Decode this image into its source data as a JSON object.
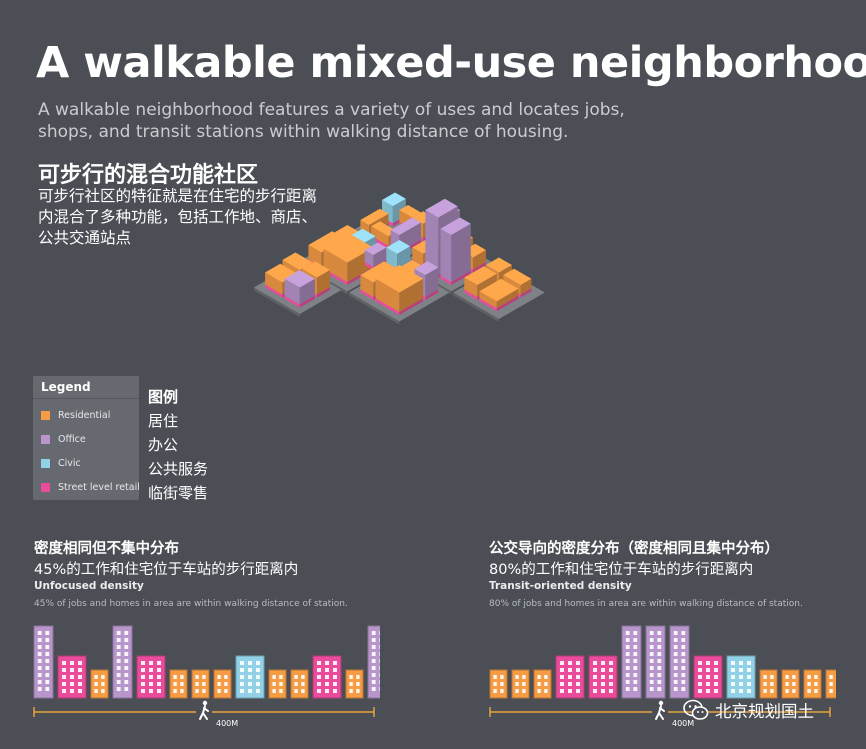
{
  "header": {
    "title": "A walkable mixed-use neighborhood",
    "subtitle": "A walkable neighborhood features a variety of uses and locates jobs, shops, and transit stations within walking distance of housing.",
    "cn_title": "可步行的混合功能社区",
    "cn_description": "可步行社区的特征就是在住宅的步行距离内混合了多种功能，包括工作地、商店、公共交通站点"
  },
  "colors": {
    "residential": "#f59c45",
    "office": "#b896cc",
    "civic": "#92d2e8",
    "retail": "#ea4c9b",
    "background": "#4b4f55",
    "street": "#7e8287",
    "walk_line": "#e6a43c"
  },
  "legend": {
    "title": "Legend",
    "items": [
      {
        "label": "Residential",
        "cn": "居住",
        "color": "#f59c45"
      },
      {
        "label": "Office",
        "cn": "办公",
        "color": "#b896cc"
      },
      {
        "label": "Civic",
        "cn": "公共服务",
        "color": "#92d2e8"
      },
      {
        "label": "Street level retail",
        "cn": "临街零售",
        "color": "#ea4c9b"
      }
    ],
    "cn_title": "图例"
  },
  "unfocused": {
    "cn_title": "密度相同但不集中分布",
    "cn_subtitle": "45%的工作和住宅位于车站的步行距离内",
    "en_title": "Unfocused density",
    "en_note": "45% of jobs and homes in area are within walking distance of station.",
    "distance_label": "400M",
    "buildings": [
      "office-tall",
      "retail-mid",
      "res-short",
      "office-tall",
      "retail-mid",
      "res-short",
      "res-short",
      "res-short",
      "civic-mid",
      "res-short",
      "res-short",
      "retail-mid",
      "res-short",
      "office-tall",
      "res-short"
    ]
  },
  "transit_oriented": {
    "cn_title": "公交导向的密度分布（密度相同且集中分布）",
    "cn_subtitle": "80%的工作和住宅位于车站的步行距离内",
    "en_title": "Transit-oriented density",
    "en_note": "80% of jobs and homes in area are within walking distance of station.",
    "distance_label": "400M",
    "buildings": [
      "res-short",
      "res-short",
      "res-short",
      "retail-mid",
      "retail-mid",
      "office-tall",
      "office-tall",
      "office-tall",
      "retail-mid",
      "civic-mid",
      "res-short",
      "res-short",
      "res-short",
      "res-short"
    ]
  },
  "watermark": {
    "text": "北京规划国土"
  }
}
